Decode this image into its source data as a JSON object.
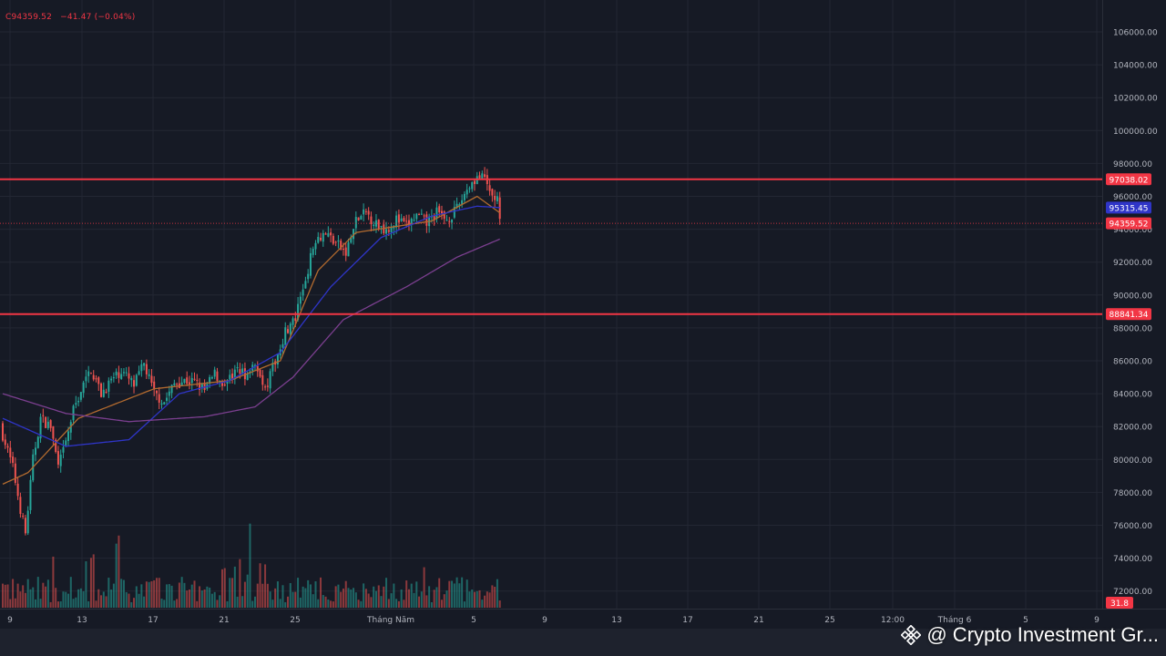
{
  "header": {
    "close": "C94359.52",
    "change": "−41.47 (−0.04%)"
  },
  "watermark": {
    "text": "@ Crypto Investment Gr..."
  },
  "colors": {
    "background": "#161a25",
    "grid": "#232733",
    "up": "#26a69a",
    "down": "#ef5350",
    "level_line": "#f23645",
    "ema_fast": "#b36b2f",
    "ema_mid": "#2f35c8",
    "ema_slow": "#7b3f8f",
    "axis_text": "#b2b5be"
  },
  "chart_data": {
    "type": "candlestick",
    "y_axis": {
      "ticks": [
        "106000.00",
        "104000.00",
        "102000.00",
        "100000.00",
        "98000.00",
        "96000.00",
        "94000.00",
        "92000.00",
        "90000.00",
        "88000.00",
        "86000.00",
        "84000.00",
        "82000.00",
        "80000.00",
        "78000.00",
        "76000.00",
        "74000.00",
        "72000.00"
      ],
      "range": [
        71000,
        107000
      ]
    },
    "x_axis": {
      "ticks": [
        "9",
        "13",
        "17",
        "21",
        "25",
        "Tháng Năm",
        "5",
        "9",
        "13",
        "17",
        "21",
        "25",
        "12:00",
        "Tháng 6",
        "5",
        "9"
      ]
    },
    "horizontal_levels": [
      {
        "value": 97038.02,
        "label": "97038.02",
        "color": "#f23645"
      },
      {
        "value": 88841.34,
        "label": "88841.34",
        "color": "#f23645"
      }
    ],
    "price_tags": [
      {
        "value": 95315.45,
        "label": "95315.45",
        "color": "#2f35c8"
      },
      {
        "value": 94359.52,
        "label": "94359.52",
        "color": "#f23645"
      }
    ],
    "current_price": 94359.52,
    "volume_tag": "31.8",
    "candle_bar_count": 198,
    "anchor_prices": [
      [
        0,
        81500
      ],
      [
        4,
        79500
      ],
      [
        7,
        77000
      ],
      [
        9,
        75500
      ],
      [
        12,
        80000
      ],
      [
        15,
        82500
      ],
      [
        19,
        82000
      ],
      [
        22,
        79500
      ],
      [
        25,
        81000
      ],
      [
        28,
        83000
      ],
      [
        31,
        84200
      ],
      [
        35,
        85500
      ],
      [
        39,
        84000
      ],
      [
        43,
        84800
      ],
      [
        47,
        85400
      ],
      [
        52,
        84500
      ],
      [
        56,
        85800
      ],
      [
        60,
        84000
      ],
      [
        64,
        83500
      ],
      [
        68,
        84600
      ],
      [
        72,
        84800
      ],
      [
        76,
        84700
      ],
      [
        80,
        84200
      ],
      [
        84,
        85200
      ],
      [
        88,
        84500
      ],
      [
        92,
        85300
      ],
      [
        96,
        85200
      ],
      [
        100,
        85500
      ],
      [
        104,
        84200
      ],
      [
        108,
        86000
      ],
      [
        112,
        87800
      ],
      [
        116,
        88500
      ],
      [
        120,
        91000
      ],
      [
        124,
        93500
      ],
      [
        128,
        93800
      ],
      [
        132,
        93200
      ],
      [
        136,
        92500
      ],
      [
        140,
        94500
      ],
      [
        144,
        95000
      ],
      [
        148,
        94300
      ],
      [
        152,
        94000
      ],
      [
        156,
        94600
      ],
      [
        160,
        94200
      ],
      [
        164,
        94800
      ],
      [
        168,
        94400
      ],
      [
        172,
        95000
      ],
      [
        176,
        94600
      ],
      [
        180,
        95200
      ],
      [
        184,
        96500
      ],
      [
        188,
        97200
      ],
      [
        191,
        97000
      ],
      [
        194,
        96000
      ],
      [
        196,
        95800
      ],
      [
        197,
        94359.52
      ]
    ],
    "ema_series": [
      {
        "name": "EMA fast",
        "anchors": [
          [
            0,
            78500
          ],
          [
            10,
            79200
          ],
          [
            30,
            82500
          ],
          [
            60,
            84300
          ],
          [
            90,
            84800
          ],
          [
            110,
            86000
          ],
          [
            125,
            91500
          ],
          [
            140,
            93800
          ],
          [
            170,
            94500
          ],
          [
            188,
            96000
          ],
          [
            197,
            95000
          ]
        ]
      },
      {
        "name": "EMA mid",
        "anchors": [
          [
            0,
            82500
          ],
          [
            25,
            80800
          ],
          [
            50,
            81200
          ],
          [
            70,
            84000
          ],
          [
            90,
            84800
          ],
          [
            110,
            86500
          ],
          [
            130,
            90500
          ],
          [
            150,
            93500
          ],
          [
            170,
            94800
          ],
          [
            188,
            95400
          ],
          [
            197,
            95315.45
          ]
        ]
      },
      {
        "name": "EMA slow",
        "anchors": [
          [
            0,
            84000
          ],
          [
            25,
            82800
          ],
          [
            50,
            82300
          ],
          [
            80,
            82600
          ],
          [
            100,
            83200
          ],
          [
            115,
            85000
          ],
          [
            135,
            88500
          ],
          [
            160,
            90500
          ],
          [
            180,
            92300
          ],
          [
            197,
            93400
          ]
        ]
      }
    ]
  }
}
